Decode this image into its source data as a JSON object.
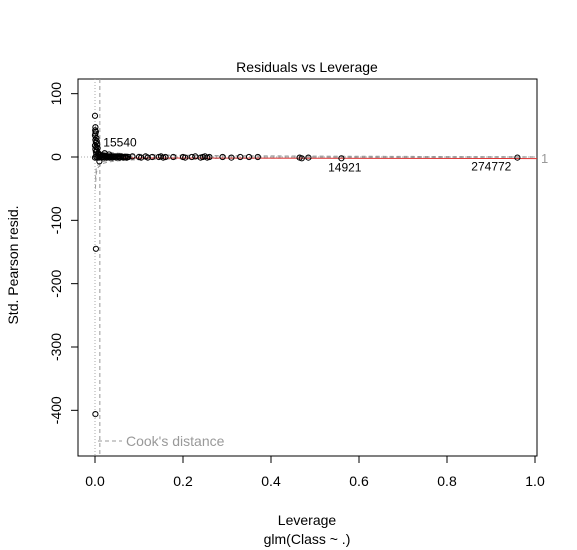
{
  "chart_data": {
    "type": "scatter",
    "title": "Residuals vs Leverage",
    "xlabel": "Leverage",
    "subtitle": "glm(Class ~ .)",
    "ylabel": "Std. Pearson resid.",
    "xlim": [
      -0.04,
      1.0
    ],
    "ylim": [
      -455,
      120
    ],
    "x_ticks": [
      0.0,
      0.2,
      0.4,
      0.6,
      0.8,
      1.0
    ],
    "x_tick_labels": [
      "0.0",
      "0.2",
      "0.4",
      "0.6",
      "0.8",
      "1.0"
    ],
    "y_ticks": [
      -400,
      -300,
      -200,
      -100,
      0,
      100
    ],
    "y_tick_labels": [
      "-400",
      "-300",
      "-200",
      "-100",
      "0",
      "100"
    ],
    "grid": false,
    "legend": {
      "label": "Cook's distance",
      "position": "bottom-left"
    },
    "contour_label": "1",
    "point_labels": [
      {
        "text": "15540",
        "x": 0.003,
        "y": 23
      },
      {
        "text": "14921",
        "x": 0.557,
        "y": -2
      },
      {
        "text": "274772",
        "x": 0.962,
        "y": -1
      }
    ],
    "points": [
      [
        0.0,
        65
      ],
      [
        0.001,
        47
      ],
      [
        0.0005,
        42
      ],
      [
        0.002,
        40
      ],
      [
        0.001,
        37
      ],
      [
        0.0,
        34
      ],
      [
        0.003,
        30
      ],
      [
        0.001,
        27
      ],
      [
        0.004,
        25
      ],
      [
        0.002,
        23
      ],
      [
        0.005,
        20
      ],
      [
        0.0,
        18
      ],
      [
        0.003,
        16
      ],
      [
        0.006,
        14
      ],
      [
        0.001,
        12
      ],
      [
        0.004,
        10
      ],
      [
        0.002,
        8
      ],
      [
        0.007,
        6
      ],
      [
        0.009,
        5
      ],
      [
        0.003,
        4
      ],
      [
        0.011,
        3
      ],
      [
        0.013,
        3
      ],
      [
        0.015,
        2
      ],
      [
        0.017,
        2
      ],
      [
        0.019,
        2
      ],
      [
        0.022,
        2
      ],
      [
        0.025,
        1
      ],
      [
        0.028,
        1
      ],
      [
        0.031,
        1
      ],
      [
        0.034,
        1
      ],
      [
        0.037,
        1
      ],
      [
        0.04,
        1
      ],
      [
        0.043,
        1
      ],
      [
        0.046,
        1
      ],
      [
        0.05,
        1
      ],
      [
        0.055,
        1
      ],
      [
        0.06,
        1
      ],
      [
        0.065,
        0
      ],
      [
        0.07,
        0
      ],
      [
        0.075,
        0
      ],
      [
        0.0,
        -1
      ],
      [
        0.003,
        0
      ],
      [
        0.006,
        -1
      ],
      [
        0.009,
        -1
      ],
      [
        0.012,
        0
      ],
      [
        0.015,
        -1
      ],
      [
        0.018,
        0
      ],
      [
        0.021,
        -1
      ],
      [
        0.024,
        0
      ],
      [
        0.027,
        -1
      ],
      [
        0.03,
        0
      ],
      [
        0.033,
        -1
      ],
      [
        0.036,
        0
      ],
      [
        0.039,
        -1
      ],
      [
        0.042,
        0
      ],
      [
        0.045,
        0
      ],
      [
        0.048,
        -1
      ],
      [
        0.052,
        0
      ],
      [
        0.056,
        -1
      ],
      [
        0.06,
        0
      ],
      [
        0.064,
        -1
      ],
      [
        0.068,
        0
      ],
      [
        0.072,
        -1
      ],
      [
        0.076,
        0
      ],
      [
        0.022,
        6
      ],
      [
        0.032,
        4
      ],
      [
        0.01,
        -7
      ],
      [
        0.085,
        1
      ],
      [
        0.1,
        0
      ],
      [
        0.105,
        -1
      ],
      [
        0.115,
        1
      ],
      [
        0.12,
        -1
      ],
      [
        0.13,
        0
      ],
      [
        0.145,
        0
      ],
      [
        0.15,
        1
      ],
      [
        0.155,
        -1
      ],
      [
        0.16,
        0
      ],
      [
        0.178,
        0
      ],
      [
        0.2,
        0
      ],
      [
        0.205,
        -1
      ],
      [
        0.22,
        0
      ],
      [
        0.228,
        1
      ],
      [
        0.24,
        -1
      ],
      [
        0.245,
        0
      ],
      [
        0.25,
        1
      ],
      [
        0.255,
        -1
      ],
      [
        0.26,
        0
      ],
      [
        0.29,
        0
      ],
      [
        0.31,
        -1
      ],
      [
        0.33,
        0
      ],
      [
        0.35,
        0
      ],
      [
        0.37,
        0
      ],
      [
        0.465,
        -1
      ],
      [
        0.47,
        -2
      ],
      [
        0.485,
        -1
      ],
      [
        0.56,
        -2
      ],
      [
        0.96,
        -1
      ],
      [
        0.002,
        -145
      ],
      [
        0.001,
        -406
      ]
    ]
  }
}
